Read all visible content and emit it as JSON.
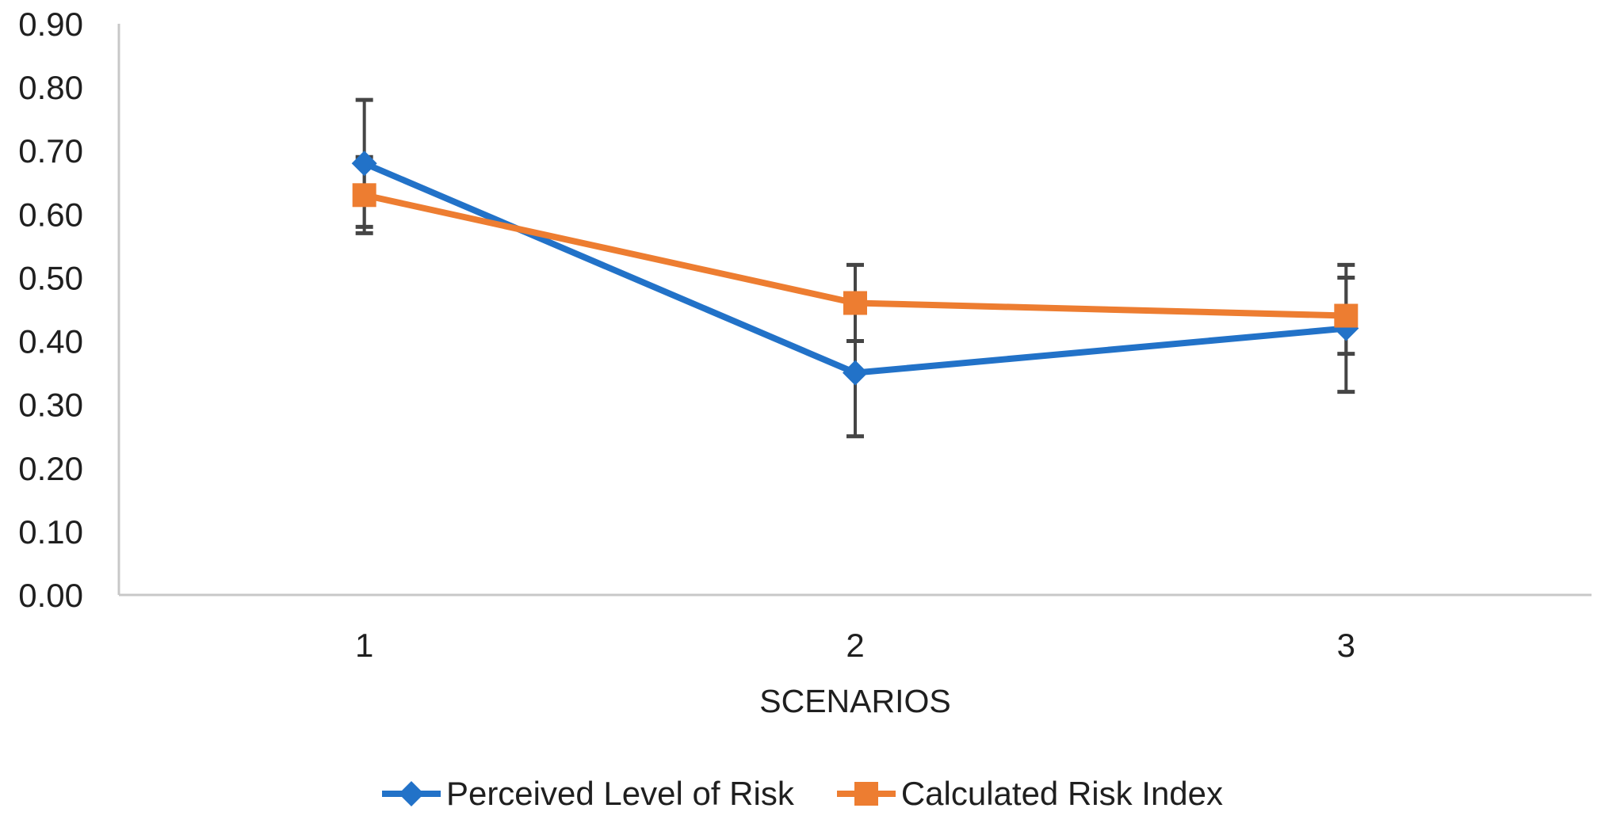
{
  "chart_data": {
    "type": "line",
    "title": "",
    "xlabel": "SCENARIOS",
    "ylabel": "",
    "ylim": [
      0.0,
      0.9
    ],
    "ytick_step": 0.1,
    "yticks": [
      "0.00",
      "0.10",
      "0.20",
      "0.30",
      "0.40",
      "0.50",
      "0.60",
      "0.70",
      "0.80",
      "0.90"
    ],
    "categories": [
      "1",
      "2",
      "3"
    ],
    "series": [
      {
        "name": "Perceived Level of Risk",
        "marker": "diamond",
        "color": "#2272C8",
        "values": [
          0.68,
          0.35,
          0.42
        ],
        "error_bars": 0.1
      },
      {
        "name": "Calculated Risk Index",
        "marker": "square",
        "color": "#ED7D31",
        "values": [
          0.63,
          0.46,
          0.44
        ],
        "error_bars": 0.06
      }
    ],
    "legend_position": "bottom",
    "grid": false,
    "colors": {
      "axis_line": "#C8C8C8",
      "error_bar": "#454545",
      "text": "#1f1f1f",
      "background": "#FFFFFF"
    }
  }
}
